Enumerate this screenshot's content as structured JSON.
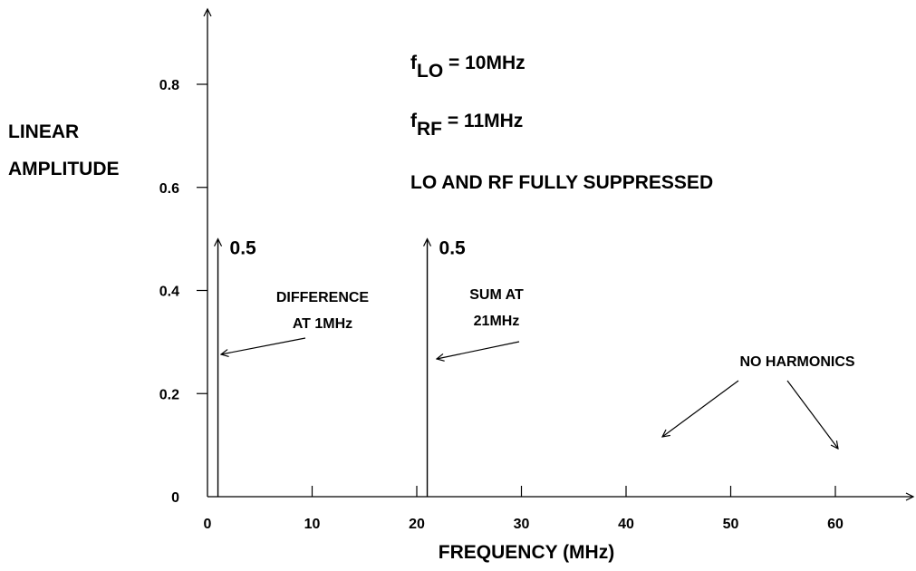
{
  "chart_data": {
    "type": "bar",
    "xlabel": "FREQUENCY (MHz)",
    "ylabel_lines": [
      "LINEAR",
      "AMPLITUDE"
    ],
    "xlim": [
      0,
      68
    ],
    "ylim": [
      0,
      0.93
    ],
    "x_ticks": [
      0,
      10,
      20,
      30,
      40,
      50,
      60
    ],
    "x_tick_labels": [
      "0",
      "10",
      "20",
      "30",
      "40",
      "50",
      "60"
    ],
    "y_ticks": [
      0,
      0.2,
      0.4,
      0.6,
      0.8
    ],
    "y_tick_labels": [
      "0",
      "0.2",
      "0.4",
      "0.6",
      "0.8"
    ],
    "grid": false,
    "spectral_lines": [
      {
        "x": 1,
        "value": 0.5,
        "value_label": "0.5",
        "caption": [
          "DIFFERENCE",
          "AT 1MHz"
        ]
      },
      {
        "x": 21,
        "value": 0.5,
        "value_label": "0.5",
        "caption": [
          "SUM AT",
          "21MHz"
        ]
      }
    ],
    "annotations": {
      "f_lo": {
        "base": "f",
        "sub": "LO",
        "rest": " = 10MHz"
      },
      "f_rf": {
        "base": "f",
        "sub": "RF",
        "rest": " = 11MHz"
      },
      "suppressed": "LO AND RF FULLY SUPPRESSED",
      "no_harmonics": "NO HARMONICS"
    }
  }
}
